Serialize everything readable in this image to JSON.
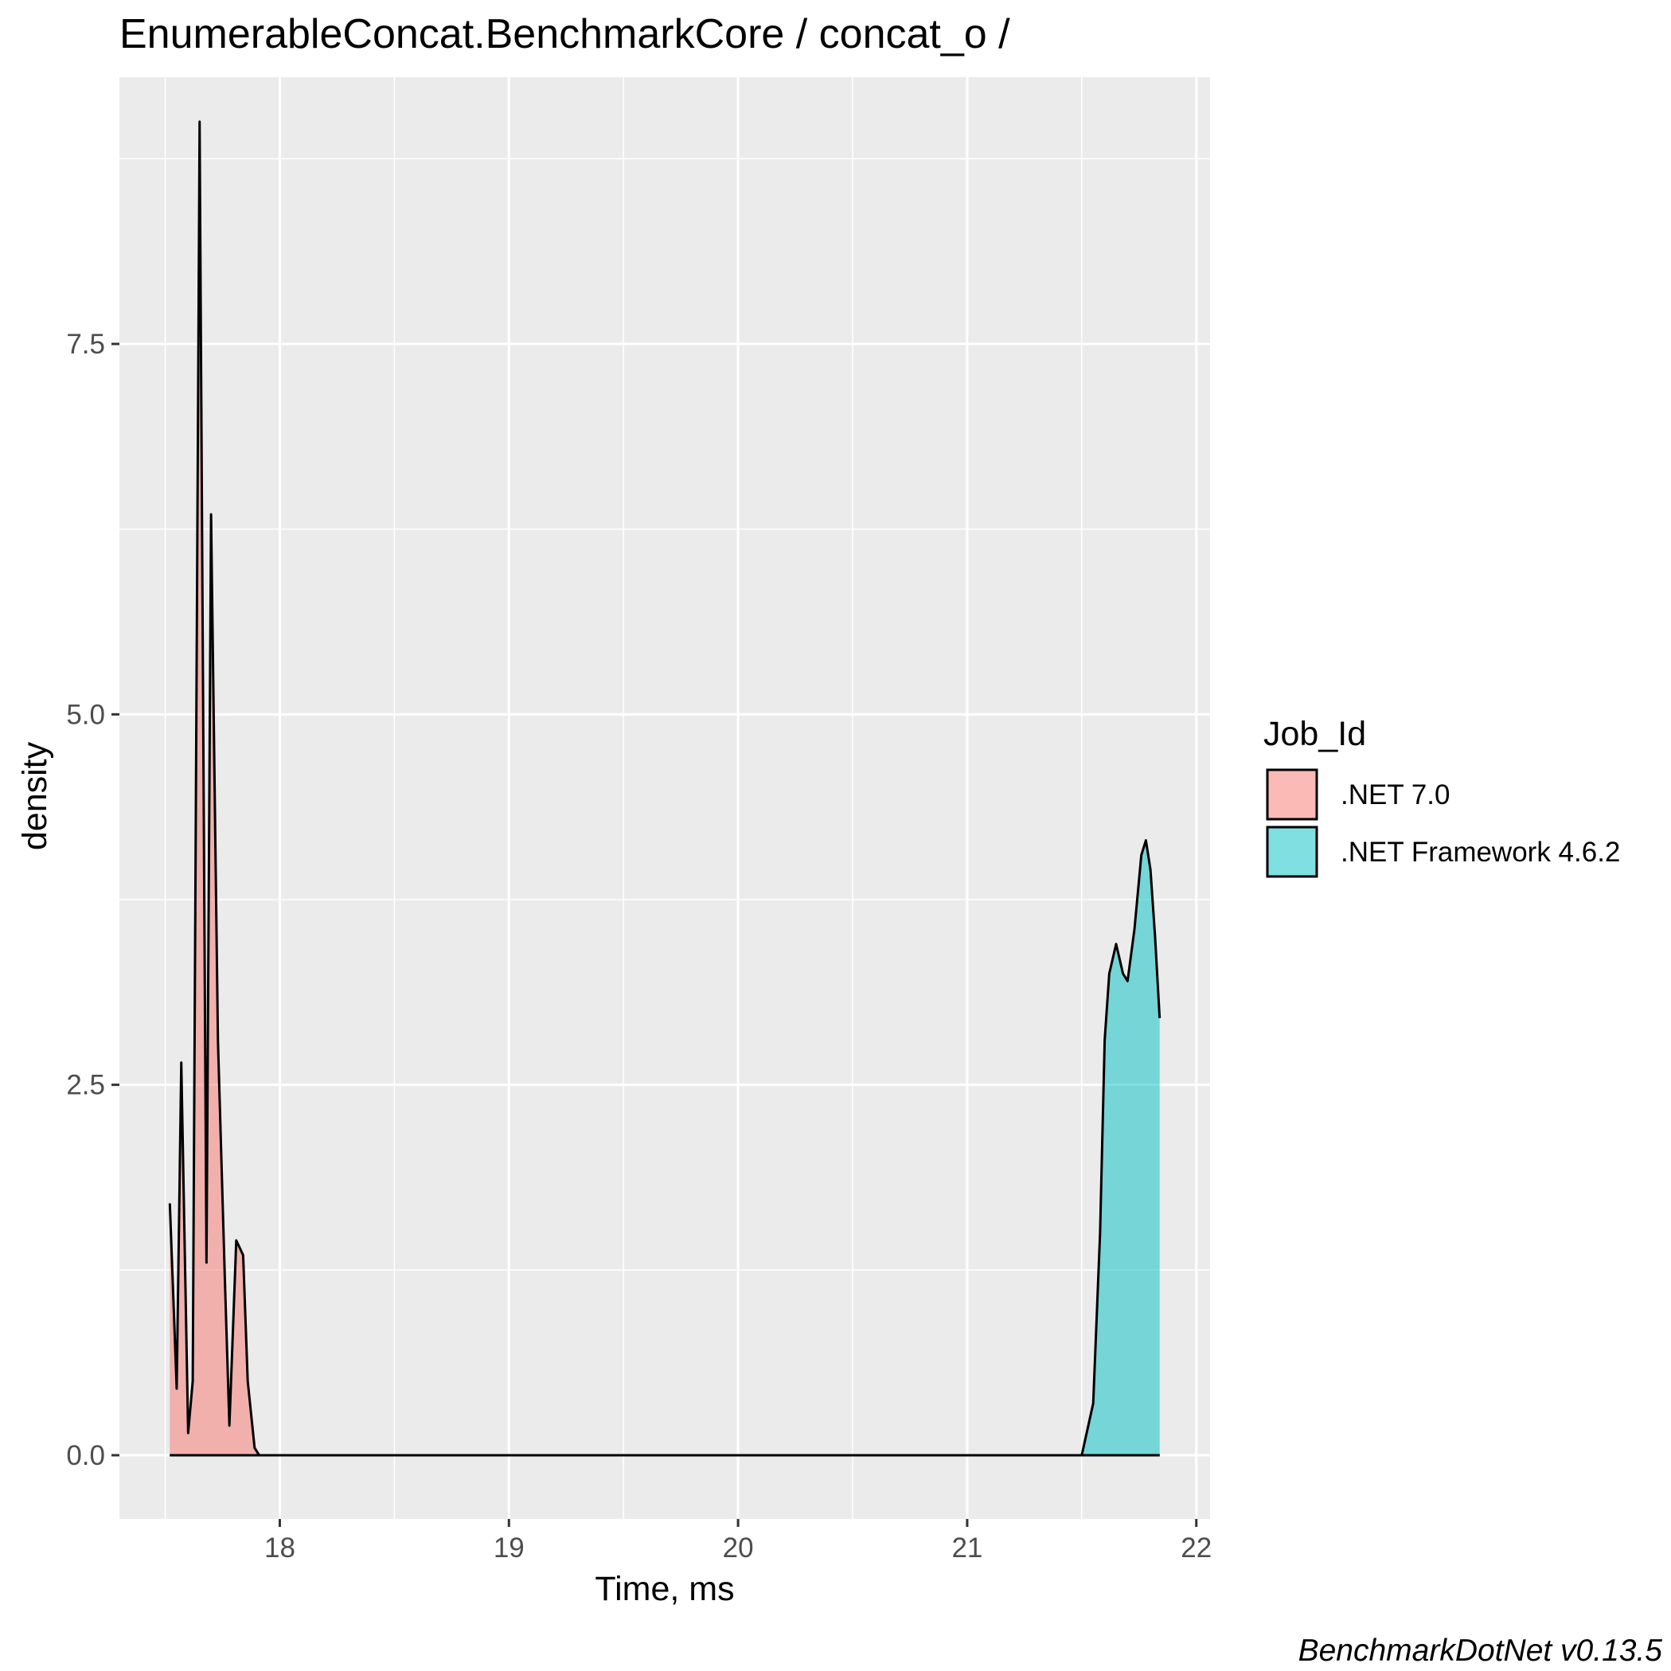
{
  "chart_data": {
    "type": "area",
    "title": "EnumerableConcat.BenchmarkCore / concat_o /",
    "xlabel": "Time, ms",
    "ylabel": "density",
    "caption": "BenchmarkDotNet v0.13.5",
    "xlim": [
      17.3,
      22.06
    ],
    "ylim": [
      -0.43,
      9.3
    ],
    "x_ticks": [
      18,
      19,
      20,
      21,
      22
    ],
    "x_tick_labels": [
      "18",
      "19",
      "20",
      "21",
      "22"
    ],
    "y_ticks": [
      0,
      2.5,
      5,
      7.5
    ],
    "y_tick_labels": [
      "0.0",
      "2.5",
      "5.0",
      "7.5"
    ],
    "grid": true,
    "legend": {
      "title": "Job_Id",
      "position": "right",
      "entries": [
        ".NET 7.0",
        ".NET Framework 4.6.2"
      ]
    },
    "series": [
      {
        "name": ".NET 7.0",
        "color": "#F8766D",
        "x": [
          17.52,
          17.55,
          17.57,
          17.6,
          17.62,
          17.65,
          17.68,
          17.7,
          17.73,
          17.76,
          17.78,
          17.81,
          17.84,
          17.86,
          17.89,
          17.91,
          17.92
        ],
        "y": [
          1.7,
          0.45,
          2.65,
          0.15,
          0.5,
          9.0,
          1.3,
          6.35,
          2.8,
          1.2,
          0.2,
          1.45,
          1.35,
          0.5,
          0.05,
          0.0,
          0.0
        ]
      },
      {
        "name": ".NET Framework 4.6.2",
        "color": "#00BFC4",
        "x": [
          21.5,
          21.55,
          21.58,
          21.6,
          21.62,
          21.65,
          21.68,
          21.7,
          21.73,
          21.76,
          21.78,
          21.8,
          21.82,
          21.84
        ],
        "y": [
          0.0,
          0.35,
          1.5,
          2.8,
          3.25,
          3.45,
          3.25,
          3.2,
          3.55,
          4.05,
          4.15,
          3.95,
          3.5,
          2.95
        ]
      }
    ]
  }
}
